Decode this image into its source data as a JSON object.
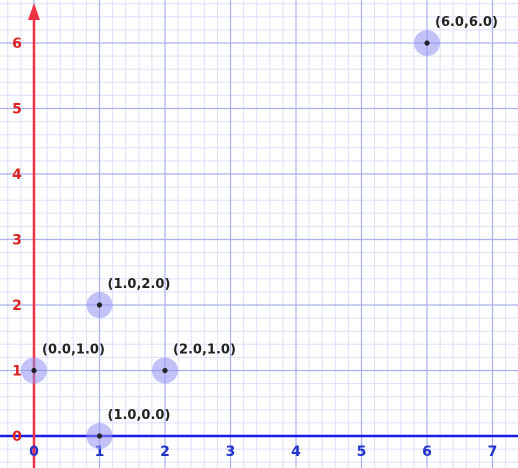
{
  "chart_data": {
    "type": "scatter",
    "title": "",
    "xlabel": "",
    "ylabel": "",
    "xlim": [
      -0.5,
      7.3
    ],
    "ylim": [
      -0.05,
      6.65
    ],
    "grid": true,
    "x_ticks": [
      {
        "value": 0,
        "label": "0"
      },
      {
        "value": 1,
        "label": "1"
      },
      {
        "value": 2,
        "label": "2"
      },
      {
        "value": 3,
        "label": "3"
      },
      {
        "value": 4,
        "label": "4"
      },
      {
        "value": 5,
        "label": "5"
      },
      {
        "value": 6,
        "label": "6"
      },
      {
        "value": 7,
        "label": "7"
      }
    ],
    "y_ticks": [
      {
        "value": 0,
        "label": "0"
      },
      {
        "value": 1,
        "label": "1"
      },
      {
        "value": 2,
        "label": "2"
      },
      {
        "value": 3,
        "label": "3"
      },
      {
        "value": 4,
        "label": "4"
      },
      {
        "value": 5,
        "label": "5"
      },
      {
        "value": 6,
        "label": "6"
      }
    ],
    "points": [
      {
        "x": 0,
        "y": 1,
        "label": "(0.0,1.0)"
      },
      {
        "x": 1,
        "y": 2,
        "label": "(1.0,2.0)"
      },
      {
        "x": 2,
        "y": 1,
        "label": "(2.0,1.0)"
      },
      {
        "x": 1,
        "y": 0,
        "label": "(1.0,0.0)"
      },
      {
        "x": 6,
        "y": 6,
        "label": "(6.0,6.0)"
      }
    ],
    "colors": {
      "x_axis": "#1a1ae6",
      "y_axis": "#ee3344",
      "x_tick_labels": "#2233cc",
      "y_tick_labels": "#dd2222",
      "major_grid": "#aab0ee",
      "minor_grid": "#dde0fa",
      "point_halo": "#8f8ff2",
      "point_dot": "#222222"
    }
  }
}
